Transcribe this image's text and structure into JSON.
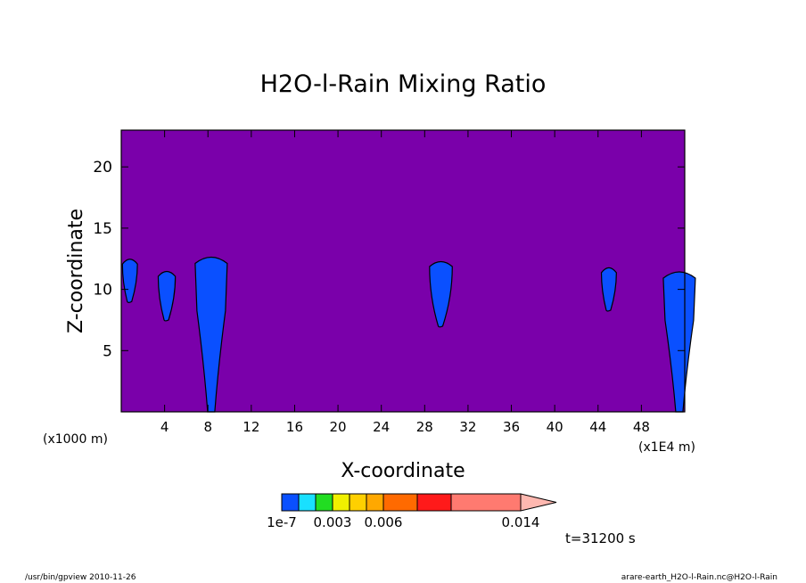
{
  "chart_data": {
    "type": "heatmap",
    "title": "H2O-l-Rain Mixing Ratio",
    "xlabel": "X-coordinate",
    "ylabel": "Z-coordinate",
    "x_unit_left": "(x1000 m)",
    "x_unit_right": "(x1E4 m)",
    "xlim": [
      0,
      52
    ],
    "ylim": [
      0,
      23
    ],
    "x_ticks": [
      4,
      8,
      12,
      16,
      20,
      24,
      28,
      32,
      36,
      40,
      44,
      48
    ],
    "y_ticks": [
      5,
      10,
      15,
      20
    ],
    "background_fill": "#7a00aa",
    "contour_fill": "#0a50ff",
    "colorbar": {
      "colors": [
        "#0a50ff",
        "#19e0ff",
        "#22dd22",
        "#f0f000",
        "#ffd000",
        "#ffa800",
        "#ff6a00",
        "#ff1a1a",
        "#ff7a70",
        "#ffb8b0"
      ],
      "labels": [
        "1e-7",
        "0.003",
        "0.006",
        "0.014"
      ]
    },
    "time_label": "t=31200 s",
    "regions": [
      {
        "x": 0.8,
        "z_bottom": 9.0,
        "z_top": 12.5
      },
      {
        "x": 4.2,
        "z_bottom": 7.5,
        "z_top": 11.5
      },
      {
        "x": 8.3,
        "z_bottom": 0.0,
        "z_top": 12.7
      },
      {
        "x": 29.5,
        "z_bottom": 7.0,
        "z_top": 12.3
      },
      {
        "x": 45.0,
        "z_bottom": 8.3,
        "z_top": 11.8
      },
      {
        "x": 51.5,
        "z_bottom": 0.0,
        "z_top": 11.5
      }
    ]
  },
  "footer": {
    "left": "/usr/bin/gpview  2010-11-26",
    "right": "arare-earth_H2O-l-Rain.nc@H2O-l-Rain"
  }
}
